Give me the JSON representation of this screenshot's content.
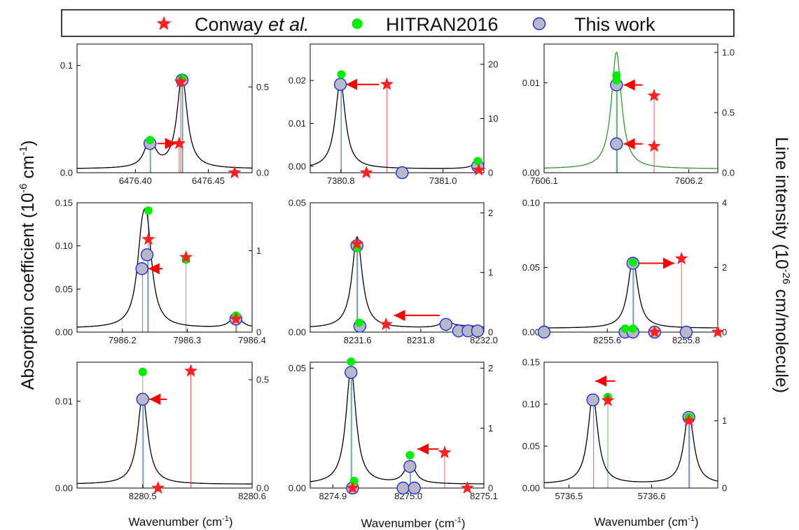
{
  "legend": {
    "entries": [
      {
        "symbol": "red-star",
        "label_plain": "Conway ",
        "label_italic": "et al.",
        "color": "#ff0000"
      },
      {
        "symbol": "green-dot",
        "label_plain": "HITRAN2016",
        "label_italic": "",
        "color": "#00ee00"
      },
      {
        "symbol": "grey-circle",
        "label_plain": "This work",
        "label_italic": "",
        "color": "#b8b8c8"
      }
    ]
  },
  "ylabel_left": {
    "base": "Absorption coefficient (10",
    "sup1": "-6",
    "mid": " cm",
    "sup2": "-1",
    "end": ")"
  },
  "ylabel_right": {
    "base": "Line intensity (10",
    "sup1": "-26",
    "end": " cm/molecule)"
  },
  "xlabel": {
    "base": "Wavenumber (cm",
    "sup": "-1",
    "end": ")"
  },
  "colors": {
    "curve": "#000000",
    "curve_green": "#2a9a2a",
    "arrow": "#ff0000",
    "star": "#ff2020",
    "hitran": "#00ee00",
    "thiswork": "#b8b8c8",
    "thiswork_edge": "#2030e0"
  },
  "chart_data": [
    {
      "type": "line",
      "panel": "a",
      "xlim": [
        6476.36,
        6476.48
      ],
      "ylim": [
        0,
        0.12
      ],
      "y2lim": [
        0,
        0.75
      ],
      "xticks": [
        [
          6476.4,
          "6476.40"
        ],
        [
          6476.45,
          "6476.45"
        ]
      ],
      "yticks": [
        [
          0,
          "0.0"
        ],
        [
          0.1,
          "0.1"
        ]
      ],
      "y2ticks": [
        [
          0,
          "0.0"
        ],
        [
          0.5,
          "0.5"
        ]
      ],
      "conway": [
        [
          6476.431,
          0.53
        ],
        [
          6476.43,
          0.17
        ],
        [
          6476.468,
          0.0
        ]
      ],
      "hitran": [
        [
          6476.432,
          0.53
        ],
        [
          6476.41,
          0.17
        ]
      ],
      "thiswork": [
        [
          6476.432,
          0.54
        ],
        [
          6476.41,
          0.17
        ]
      ],
      "arrows": [
        [
          6476.415,
          0.17,
          6476.428,
          0.17
        ]
      ]
    },
    {
      "type": "line",
      "panel": "b",
      "xlim": [
        7380.74,
        7381.08
      ],
      "ylim": [
        -0.0015,
        0.0285
      ],
      "y2lim": [
        0,
        23.75
      ],
      "xticks": [
        [
          7380.8,
          "7380.8"
        ],
        [
          7381.0,
          "7381.0"
        ]
      ],
      "yticks": [
        [
          0,
          "0.00"
        ],
        [
          0.01,
          "0.01"
        ],
        [
          0.02,
          "0.02"
        ]
      ],
      "y2ticks": [
        [
          0,
          "0"
        ],
        [
          10,
          "10"
        ],
        [
          20,
          "20"
        ]
      ],
      "conway": [
        [
          7380.89,
          16.3
        ],
        [
          7380.85,
          0
        ],
        [
          7381.07,
          0.5
        ]
      ],
      "hitran": [
        [
          7380.801,
          17.5
        ],
        [
          7381.068,
          1.5
        ]
      ],
      "thiswork": [
        [
          7380.799,
          16.3
        ],
        [
          7380.92,
          0
        ],
        [
          7381.068,
          1.2
        ]
      ],
      "arrows": [
        [
          7380.875,
          16.3,
          7380.81,
          16.3
        ]
      ]
    },
    {
      "type": "line",
      "panel": "c",
      "xlim": [
        7606.1,
        7606.22
      ],
      "ylim": [
        0,
        0.0143
      ],
      "y2lim": [
        0,
        1.07
      ],
      "xticks": [
        [
          7606.1,
          "7606.1"
        ],
        [
          7606.2,
          "7606.2"
        ]
      ],
      "yticks": [
        [
          0,
          "0.00"
        ],
        [
          0.01,
          "0.01"
        ]
      ],
      "y2ticks": [
        [
          0,
          "0.0"
        ],
        [
          0.5,
          "0.5"
        ],
        [
          1.0,
          "1.0"
        ]
      ],
      "conway": [
        [
          7606.176,
          0.64
        ],
        [
          7606.176,
          0.22
        ]
      ],
      "hitran": [
        [
          7606.15,
          0.78
        ],
        [
          7606.15,
          0.74
        ]
      ],
      "thiswork": [
        [
          7606.15,
          0.73
        ],
        [
          7606.15,
          0.24
        ]
      ],
      "arrows": [
        [
          7606.168,
          0.73,
          7606.155,
          0.73
        ],
        [
          7606.168,
          0.24,
          7606.155,
          0.24
        ]
      ]
    },
    {
      "type": "line",
      "panel": "d",
      "xlim": [
        7986.13,
        7986.4
      ],
      "ylim": [
        0,
        0.15
      ],
      "y2lim": [
        0,
        1.59
      ],
      "xticks": [
        [
          7986.2,
          "7986.2"
        ],
        [
          7986.3,
          "7986.3"
        ],
        [
          7986.4,
          "7986.4"
        ]
      ],
      "yticks": [
        [
          0,
          "0.00"
        ],
        [
          0.05,
          "0.05"
        ],
        [
          0.1,
          "0.10"
        ],
        [
          0.15,
          "0.15"
        ]
      ],
      "y2ticks": [
        [
          0,
          "0"
        ],
        [
          1,
          "1"
        ]
      ],
      "conway": [
        [
          7986.24,
          1.14
        ],
        [
          7986.298,
          0.92
        ],
        [
          7986.375,
          0.16
        ]
      ],
      "hitran": [
        [
          7986.24,
          1.45
        ],
        [
          7986.298,
          0.85
        ],
        [
          7986.375,
          0.16
        ]
      ],
      "thiswork": [
        [
          7986.238,
          0.95
        ],
        [
          7986.23,
          0.78
        ],
        [
          7986.375,
          0.16
        ]
      ],
      "arrows": [
        [
          7986.262,
          0.78,
          7986.24,
          0.78
        ]
      ]
    },
    {
      "type": "line",
      "panel": "e",
      "xlim": [
        8231.45,
        8232.0
      ],
      "ylim": [
        0,
        0.05
      ],
      "y2lim": [
        0,
        2.17
      ],
      "xticks": [
        [
          8231.6,
          "8231.6"
        ],
        [
          8231.8,
          "8231.8"
        ],
        [
          8232.0,
          "8232.0"
        ]
      ],
      "yticks": [
        [
          0,
          "0.00"
        ],
        [
          0.05,
          "0.05"
        ]
      ],
      "y2ticks": [
        [
          0,
          "0"
        ],
        [
          1,
          "1"
        ],
        [
          2,
          "2"
        ]
      ],
      "conway": [
        [
          8231.598,
          1.48
        ],
        [
          8231.69,
          0.13
        ]
      ],
      "hitran": [
        [
          8231.598,
          1.35
        ],
        [
          8231.605,
          0.1
        ]
      ],
      "thiswork": [
        [
          8231.598,
          1.45
        ],
        [
          8231.607,
          0.1
        ],
        [
          8231.88,
          0.13
        ],
        [
          8231.92,
          0.02
        ],
        [
          8231.95,
          0.02
        ],
        [
          8231.98,
          0.02
        ]
      ],
      "arrows": [
        [
          8231.86,
          0.28,
          8231.715,
          0.28
        ]
      ]
    },
    {
      "type": "line",
      "panel": "f",
      "xlim": [
        8255.44,
        8255.88
      ],
      "ylim": [
        0,
        0.1
      ],
      "y2lim": [
        0,
        4
      ],
      "xticks": [
        [
          8255.6,
          "8255.6"
        ],
        [
          8255.8,
          "8255.8"
        ]
      ],
      "yticks": [
        [
          0,
          "0.00"
        ],
        [
          0.05,
          "0.05"
        ],
        [
          0.1,
          "0.10"
        ]
      ],
      "y2ticks": [
        [
          0,
          "0"
        ],
        [
          2,
          "2"
        ],
        [
          4,
          "4"
        ]
      ],
      "conway": [
        [
          8255.788,
          2.27
        ],
        [
          8255.72,
          0
        ],
        [
          8255.88,
          0
        ]
      ],
      "hitran": [
        [
          8255.665,
          2.05
        ],
        [
          8255.645,
          0
        ],
        [
          8255.665,
          0
        ]
      ],
      "thiswork": [
        [
          8255.665,
          2.13
        ],
        [
          8255.44,
          0
        ],
        [
          8255.645,
          0
        ],
        [
          8255.665,
          0
        ],
        [
          8255.72,
          0
        ],
        [
          8255.8,
          0
        ]
      ],
      "arrows": [
        [
          8255.68,
          2.13,
          8255.77,
          2.13
        ]
      ]
    },
    {
      "type": "line",
      "panel": "g",
      "xlim": [
        8280.44,
        8280.6
      ],
      "ylim": [
        0,
        0.0145
      ],
      "y2lim": [
        0,
        0.581
      ],
      "xticks": [
        [
          8280.5,
          "8280.5"
        ],
        [
          8280.6,
          "8280.6"
        ]
      ],
      "yticks": [
        [
          0,
          "0.00"
        ],
        [
          0.01,
          "0.01"
        ]
      ],
      "y2ticks": [
        [
          0,
          "0.0"
        ],
        [
          0.5,
          "0.5"
        ]
      ],
      "conway": [
        [
          8280.544,
          0.54
        ],
        [
          8280.514,
          0
        ]
      ],
      "hitran": [
        [
          8280.5,
          0.52
        ]
      ],
      "thiswork": [
        [
          8280.5,
          0.41
        ]
      ],
      "arrows": [
        [
          8280.522,
          0.41,
          8280.506,
          0.41
        ]
      ]
    },
    {
      "type": "line",
      "panel": "h",
      "xlim": [
        8274.87,
        8275.1
      ],
      "ylim": [
        0,
        0.0525
      ],
      "y2lim": [
        0,
        2.1
      ],
      "xticks": [
        [
          8274.9,
          "8274.9"
        ],
        [
          8275.0,
          "8275.0"
        ],
        [
          8275.1,
          "8275.1"
        ]
      ],
      "yticks": [
        [
          0,
          "0.00"
        ],
        [
          0.05,
          "0.05"
        ]
      ],
      "y2ticks": [
        [
          0,
          "0"
        ],
        [
          1,
          "1"
        ],
        [
          2,
          "2"
        ]
      ],
      "conway": [
        [
          8275.048,
          0.59
        ],
        [
          8275.078,
          0
        ],
        [
          8274.926,
          0
        ]
      ],
      "hitran": [
        [
          8274.924,
          2.05
        ],
        [
          8275.002,
          0.49
        ],
        [
          8274.928,
          0.06
        ]
      ],
      "thiswork": [
        [
          8274.924,
          1.93
        ],
        [
          8275.002,
          0.36
        ],
        [
          8274.926,
          0
        ],
        [
          8274.993,
          0
        ],
        [
          8275.008,
          0
        ]
      ],
      "arrows": [
        [
          8275.04,
          0.65,
          8275.012,
          0.65
        ]
      ]
    },
    {
      "type": "line",
      "panel": "i",
      "xlim": [
        5736.47,
        5736.68
      ],
      "ylim": [
        0,
        0.15
      ],
      "y2lim": [
        0,
        1.87
      ],
      "xticks": [
        [
          5736.5,
          "5736.5"
        ],
        [
          5736.6,
          "5736.6"
        ]
      ],
      "yticks": [
        [
          0,
          "0.00"
        ],
        [
          0.05,
          "0.05"
        ],
        [
          0.1,
          "0.10"
        ],
        [
          0.15,
          "0.15"
        ]
      ],
      "y2ticks": [
        [
          0,
          "0"
        ],
        [
          1,
          "1"
        ]
      ],
      "conway": [
        [
          5736.547,
          1.3
        ],
        [
          5736.645,
          1.0
        ]
      ],
      "hitran": [
        [
          5736.547,
          1.3
        ],
        [
          5736.645,
          1.0
        ]
      ],
      "thiswork": [
        [
          5736.529,
          1.31
        ],
        [
          5736.645,
          1.05
        ]
      ],
      "arrows": [
        [
          5736.556,
          1.59,
          5736.532,
          1.59
        ]
      ]
    }
  ]
}
